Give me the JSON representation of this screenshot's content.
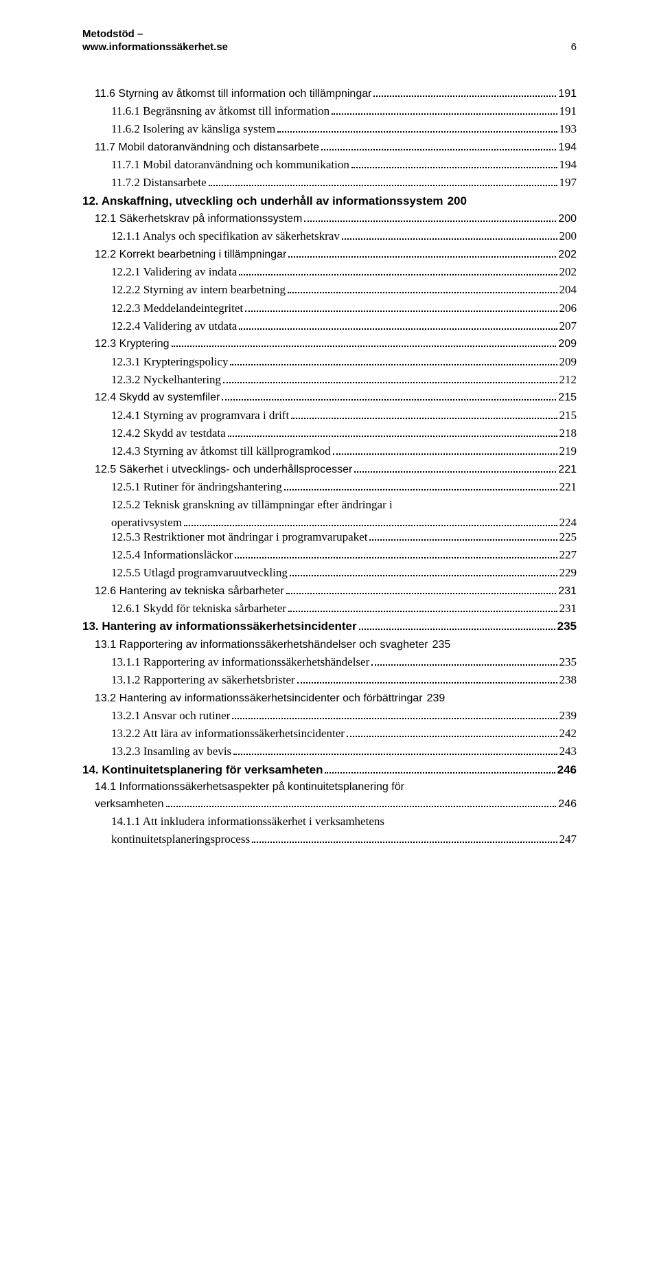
{
  "header": {
    "title": "Metodstöd –",
    "url": "www.informationssäkerhet.se",
    "page_number": "6"
  },
  "toc": [
    {
      "level": 2,
      "label": "11.6 Styrning av åtkomst till information och tillämpningar",
      "page": "191"
    },
    {
      "level": 3,
      "label": "11.6.1 Begränsning av åtkomst till information",
      "page": "191"
    },
    {
      "level": 3,
      "label": "11.6.2 Isolering av känsliga system",
      "page": "193"
    },
    {
      "level": 2,
      "label": "11.7 Mobil datoranvändning och distansarbete",
      "page": "194"
    },
    {
      "level": 3,
      "label": "11.7.1 Mobil datoranvändning och kommunikation",
      "page": "194"
    },
    {
      "level": 3,
      "label": "11.7.2 Distansarbete",
      "page": "197"
    },
    {
      "level": 1,
      "label": "12. Anskaffning, utveckling och underhåll av informationssystem",
      "page": "200",
      "nodots": true
    },
    {
      "level": 2,
      "label": "12.1 Säkerhetskrav på informationssystem",
      "page": "200"
    },
    {
      "level": 3,
      "label": "12.1.1 Analys och specifikation av säkerhetskrav",
      "page": "200"
    },
    {
      "level": 2,
      "label": "12.2 Korrekt bearbetning i tillämpningar",
      "page": "202"
    },
    {
      "level": 3,
      "label": "12.2.1 Validering av indata",
      "page": "202"
    },
    {
      "level": 3,
      "label": "12.2.2 Styrning av intern bearbetning",
      "page": "204"
    },
    {
      "level": 3,
      "label": "12.2.3 Meddelandeintegritet",
      "page": "206"
    },
    {
      "level": 3,
      "label": "12.2.4 Validering av utdata",
      "page": "207"
    },
    {
      "level": 2,
      "label": "12.3 Kryptering",
      "page": "209"
    },
    {
      "level": 3,
      "label": "12.3.1 Krypteringspolicy",
      "page": "209"
    },
    {
      "level": 3,
      "label": "12.3.2 Nyckelhantering",
      "page": "212"
    },
    {
      "level": 2,
      "label": "12.4 Skydd av systemfiler",
      "page": "215"
    },
    {
      "level": 3,
      "label": "12.4.1 Styrning av programvara i drift",
      "page": "215"
    },
    {
      "level": 3,
      "label": "12.4.2 Skydd av testdata",
      "page": "218"
    },
    {
      "level": 3,
      "label": "12.4.3 Styrning av åtkomst till källprogramkod",
      "page": "219"
    },
    {
      "level": 2,
      "label": "12.5 Säkerhet i utvecklings- och underhållsprocesser",
      "page": "221"
    },
    {
      "level": 3,
      "label": "12.5.1 Rutiner för ändringshantering",
      "page": "221"
    },
    {
      "level": "wrap",
      "line1": "12.5.2 Teknisk granskning av tillämpningar efter ändringar i",
      "line2": "operativsystem",
      "page": "224"
    },
    {
      "level": 3,
      "label": "12.5.3 Restriktioner mot ändringar i programvarupaket",
      "page": "225"
    },
    {
      "level": 3,
      "label": "12.5.4 Informationsläckor",
      "page": "227"
    },
    {
      "level": 3,
      "label": "12.5.5 Utlagd programvaruutveckling",
      "page": "229"
    },
    {
      "level": 2,
      "label": "12.6 Hantering av tekniska sårbarheter",
      "page": "231"
    },
    {
      "level": 3,
      "label": "12.6.1 Skydd för tekniska sårbarheter",
      "page": "231"
    },
    {
      "level": 1,
      "label": "13. Hantering av informationssäkerhetsincidenter",
      "page": "235"
    },
    {
      "level": 2,
      "label": "13.1 Rapportering av informationssäkerhetshändelser och svagheter",
      "page": "235",
      "nodots": true
    },
    {
      "level": 3,
      "label": "13.1.1 Rapportering av informationssäkerhetshändelser",
      "page": "235"
    },
    {
      "level": 3,
      "label": "13.1.2 Rapportering av säkerhetsbrister",
      "page": "238"
    },
    {
      "level": 2,
      "label": "13.2 Hantering av informationssäkerhetsincidenter och förbättringar",
      "page": "239",
      "nodots": true
    },
    {
      "level": 3,
      "label": "13.2.1 Ansvar och rutiner",
      "page": "239"
    },
    {
      "level": 3,
      "label": "13.2.2 Att lära av informationssäkerhetsincidenter",
      "page": "242"
    },
    {
      "level": 3,
      "label": "13.2.3 Insamling av bevis",
      "page": "243"
    },
    {
      "level": 1,
      "label": "14. Kontinuitetsplanering för verksamheten",
      "page": "246"
    },
    {
      "level": "wrap2",
      "line1": "14.1 Informationssäkerhetsaspekter på kontinuitetsplanering för",
      "line2": "verksamheten",
      "page": "246"
    },
    {
      "level": "wrap3",
      "line1": "14.1.1 Att inkludera informationssäkerhet i verksamhetens",
      "line2": "kontinuitetsplaneringsprocess",
      "page": "247"
    }
  ]
}
